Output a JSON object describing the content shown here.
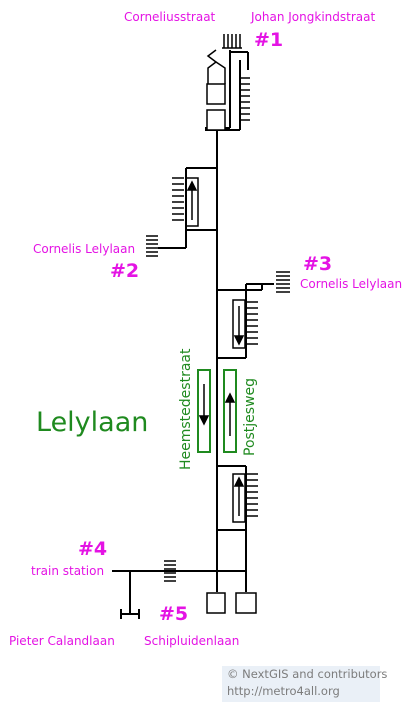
{
  "station_name": "Lelylaan",
  "exits": [
    {
      "id": "1",
      "number": "#1",
      "streets": [
        "Corneliusstraat",
        "Johan Jongkindstraat"
      ]
    },
    {
      "id": "2",
      "number": "#2",
      "streets": [
        "Cornelis Lelylaan"
      ]
    },
    {
      "id": "3",
      "number": "#3",
      "streets": [
        "Cornelis Lelylaan"
      ]
    },
    {
      "id": "4",
      "number": "#4",
      "streets": [
        "train station"
      ]
    },
    {
      "id": "5",
      "number": "#5",
      "streets": [
        "Pieter Calandlaan",
        "Schipluidenlaan"
      ]
    }
  ],
  "platform_streets": {
    "left": "Heemstedestraat",
    "right": "Postjesweg"
  },
  "credits": {
    "line1": "© NextGIS and contributors",
    "line2": "http://metro4all.org"
  },
  "colors": {
    "label": "#e413e4",
    "platform": "#1f8a1f",
    "lines": "#000000",
    "credits_bg": "#eaf0f7"
  }
}
